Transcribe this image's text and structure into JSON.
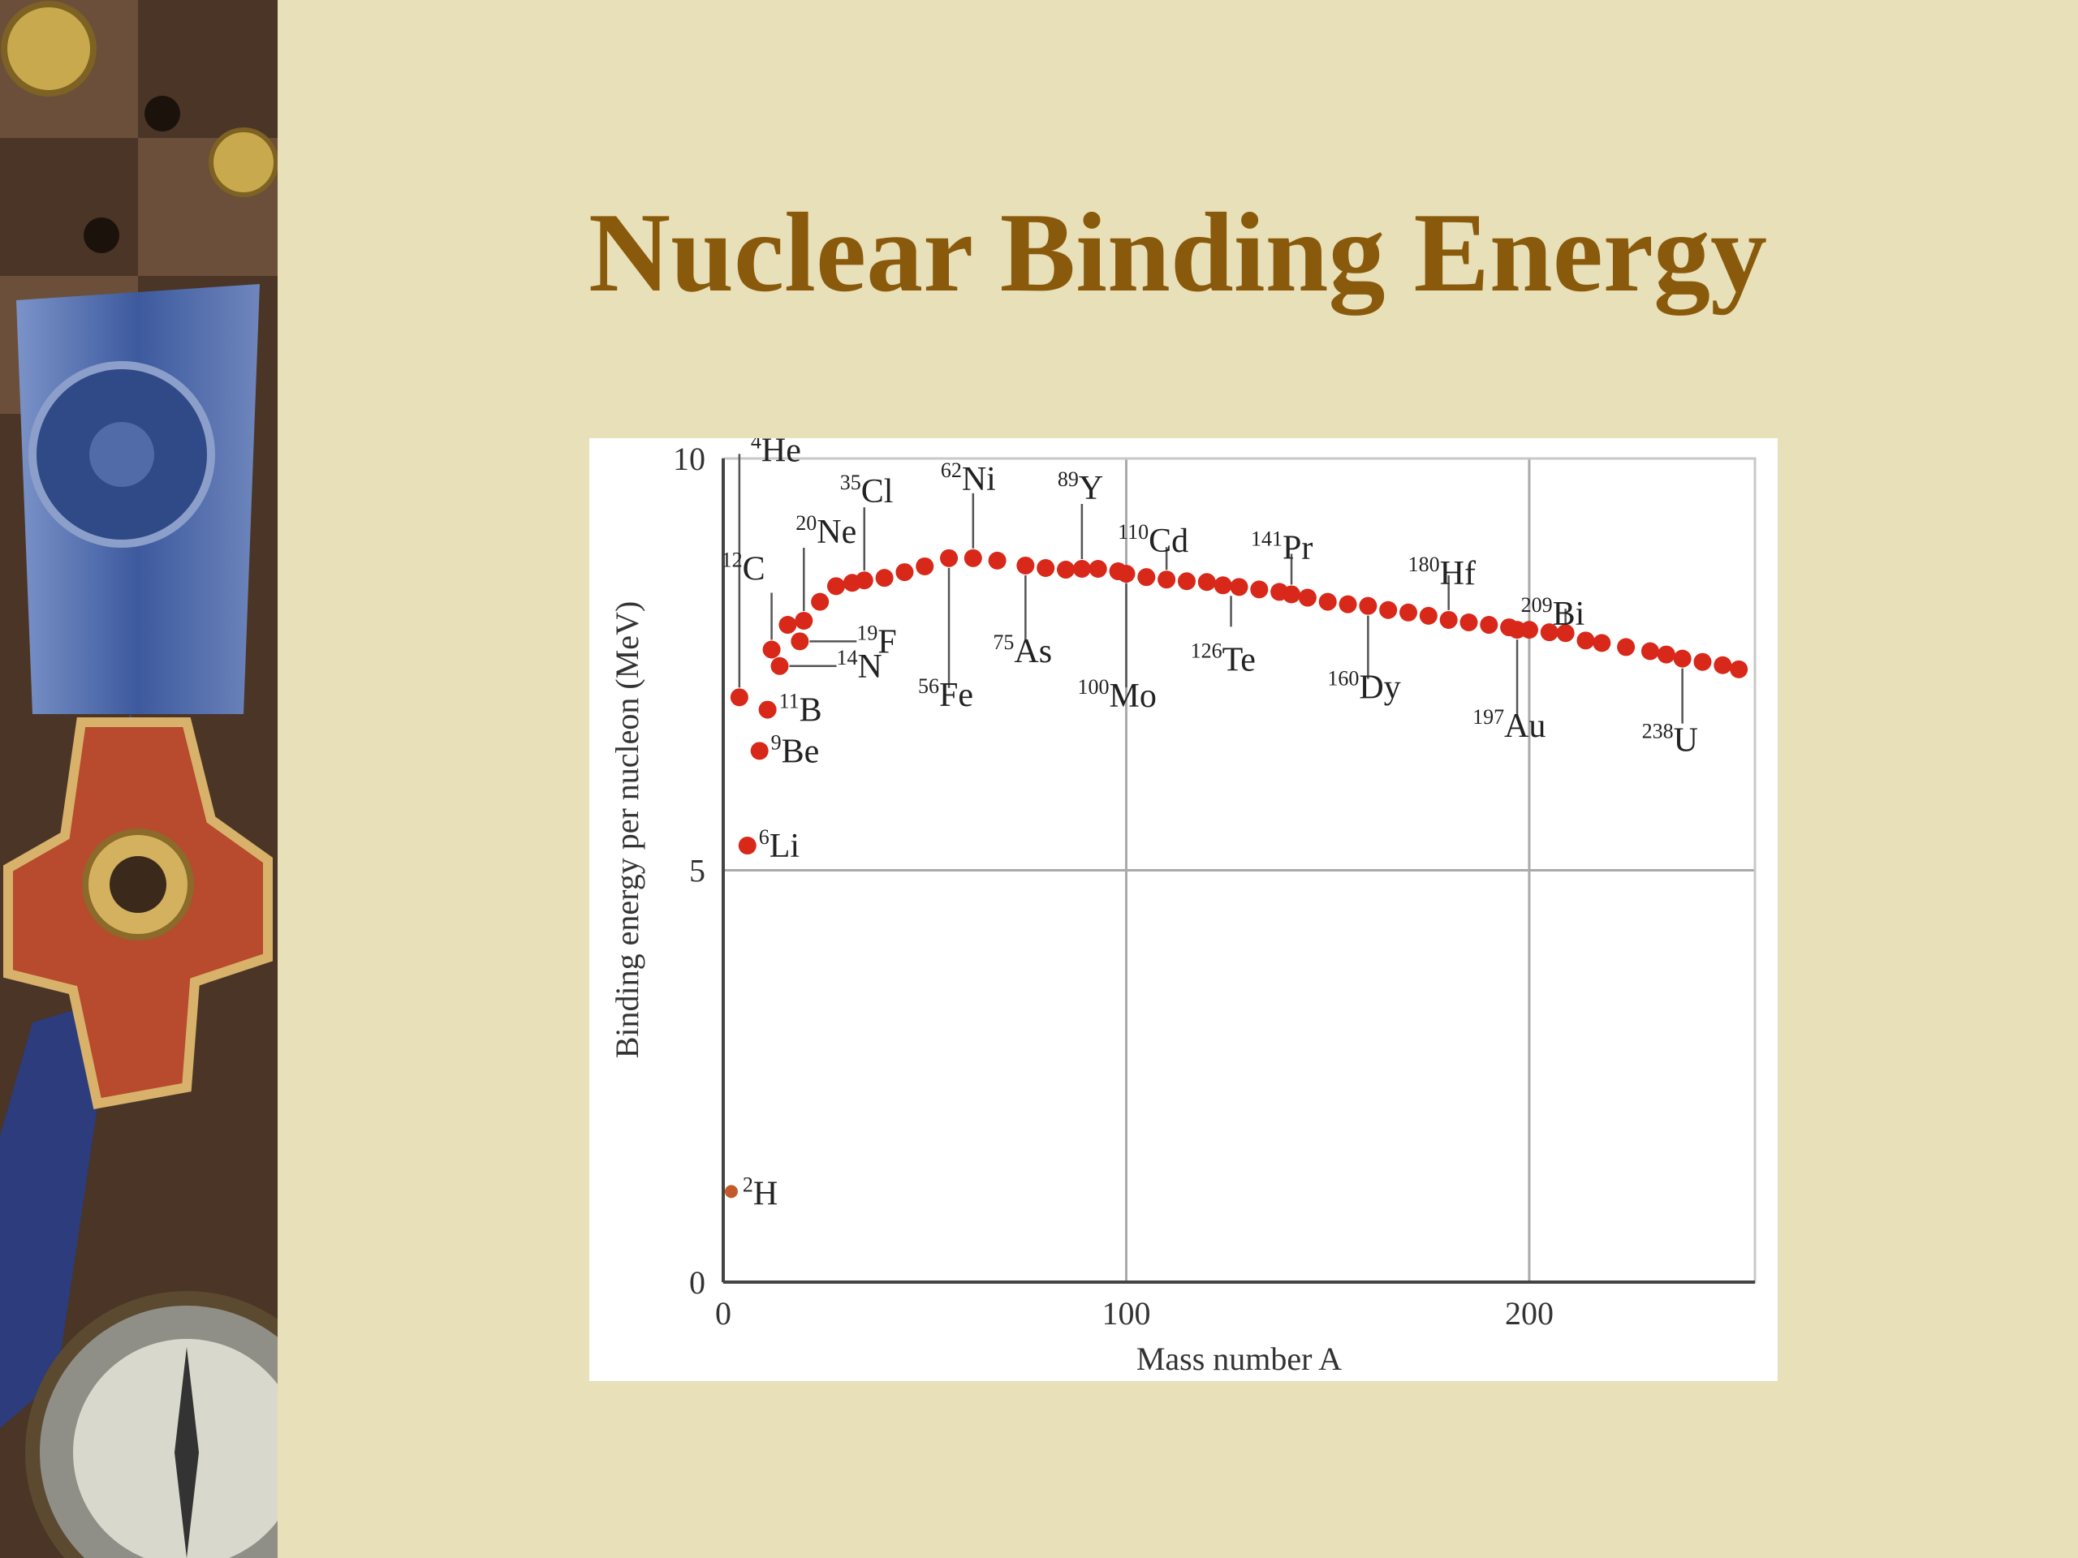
{
  "slide": {
    "title": "Nuclear Binding Energy"
  },
  "sidebar": {
    "image": "decorative-medals-compass-collage"
  },
  "colors": {
    "background": "#e8e0b8",
    "title": "#8a5a0c",
    "points": "#d8281a",
    "gridline": "#aaaaaa"
  },
  "chart_data": {
    "type": "scatter",
    "title": "",
    "xlabel": "Mass number A",
    "ylabel": "Binding energy per nucleon (MeV)",
    "xlim": [
      0,
      256
    ],
    "ylim": [
      0,
      10
    ],
    "xticks": [
      "0",
      "100",
      "200"
    ],
    "yticks": [
      "0",
      "5",
      "10"
    ],
    "grid": true,
    "series": [
      {
        "points": [
          [
            2,
            1.1
          ],
          [
            4,
            7.1
          ],
          [
            6,
            5.3
          ],
          [
            9,
            6.45
          ],
          [
            11,
            6.95
          ],
          [
            12,
            7.68
          ],
          [
            14,
            7.48
          ],
          [
            16,
            7.98
          ],
          [
            19,
            7.78
          ],
          [
            20,
            8.03
          ],
          [
            24,
            8.26
          ],
          [
            28,
            8.45
          ],
          [
            32,
            8.49
          ],
          [
            35,
            8.52
          ],
          [
            40,
            8.55
          ],
          [
            45,
            8.62
          ],
          [
            50,
            8.69
          ],
          [
            56,
            8.79
          ],
          [
            62,
            8.79
          ],
          [
            68,
            8.76
          ],
          [
            75,
            8.7
          ],
          [
            80,
            8.67
          ],
          [
            85,
            8.65
          ],
          [
            89,
            8.66
          ],
          [
            93,
            8.66
          ],
          [
            98,
            8.63
          ],
          [
            100,
            8.6
          ],
          [
            105,
            8.56
          ],
          [
            110,
            8.53
          ],
          [
            115,
            8.51
          ],
          [
            120,
            8.5
          ],
          [
            124,
            8.46
          ],
          [
            128,
            8.44
          ],
          [
            133,
            8.41
          ],
          [
            138,
            8.38
          ],
          [
            141,
            8.35
          ],
          [
            145,
            8.31
          ],
          [
            150,
            8.26
          ],
          [
            155,
            8.23
          ],
          [
            160,
            8.21
          ],
          [
            165,
            8.16
          ],
          [
            170,
            8.13
          ],
          [
            175,
            8.09
          ],
          [
            180,
            8.04
          ],
          [
            185,
            8.01
          ],
          [
            190,
            7.98
          ],
          [
            195,
            7.95
          ],
          [
            197,
            7.92
          ],
          [
            200,
            7.92
          ],
          [
            205,
            7.89
          ],
          [
            209,
            7.88
          ],
          [
            214,
            7.79
          ],
          [
            218,
            7.76
          ],
          [
            224,
            7.71
          ],
          [
            230,
            7.66
          ],
          [
            234,
            7.62
          ],
          [
            238,
            7.57
          ],
          [
            243,
            7.53
          ],
          [
            248,
            7.49
          ],
          [
            252,
            7.44
          ]
        ]
      }
    ],
    "annotations": [
      {
        "sup": "2",
        "el": "H",
        "x": 2,
        "y": 1.1
      },
      {
        "sup": "4",
        "el": "He",
        "x": 4,
        "y": 7.1
      },
      {
        "sup": "6",
        "el": "Li",
        "x": 6,
        "y": 5.3
      },
      {
        "sup": "9",
        "el": "Be",
        "x": 9,
        "y": 6.45
      },
      {
        "sup": "11",
        "el": "B",
        "x": 11,
        "y": 6.95
      },
      {
        "sup": "12",
        "el": "C",
        "x": 12,
        "y": 7.68
      },
      {
        "sup": "14",
        "el": "N",
        "x": 14,
        "y": 7.48
      },
      {
        "sup": "19",
        "el": "F",
        "x": 19,
        "y": 7.78
      },
      {
        "sup": "20",
        "el": "Ne",
        "x": 20,
        "y": 8.03
      },
      {
        "sup": "35",
        "el": "Cl",
        "x": 35,
        "y": 8.52
      },
      {
        "sup": "56",
        "el": "Fe",
        "x": 56,
        "y": 8.79
      },
      {
        "sup": "62",
        "el": "Ni",
        "x": 62,
        "y": 8.79
      },
      {
        "sup": "75",
        "el": "As",
        "x": 75,
        "y": 8.7
      },
      {
        "sup": "89",
        "el": "Y",
        "x": 89,
        "y": 8.66
      },
      {
        "sup": "100",
        "el": "Mo",
        "x": 100,
        "y": 8.6
      },
      {
        "sup": "110",
        "el": "Cd",
        "x": 110,
        "y": 8.53
      },
      {
        "sup": "126",
        "el": "Te",
        "x": 126,
        "y": 8.45
      },
      {
        "sup": "141",
        "el": "Pr",
        "x": 141,
        "y": 8.35
      },
      {
        "sup": "160",
        "el": "Dy",
        "x": 160,
        "y": 8.21
      },
      {
        "sup": "180",
        "el": "Hf",
        "x": 180,
        "y": 8.04
      },
      {
        "sup": "197",
        "el": "Au",
        "x": 197,
        "y": 7.92
      },
      {
        "sup": "209",
        "el": "Bi",
        "x": 209,
        "y": 7.88
      },
      {
        "sup": "238",
        "el": "U",
        "x": 238,
        "y": 7.57
      }
    ]
  }
}
